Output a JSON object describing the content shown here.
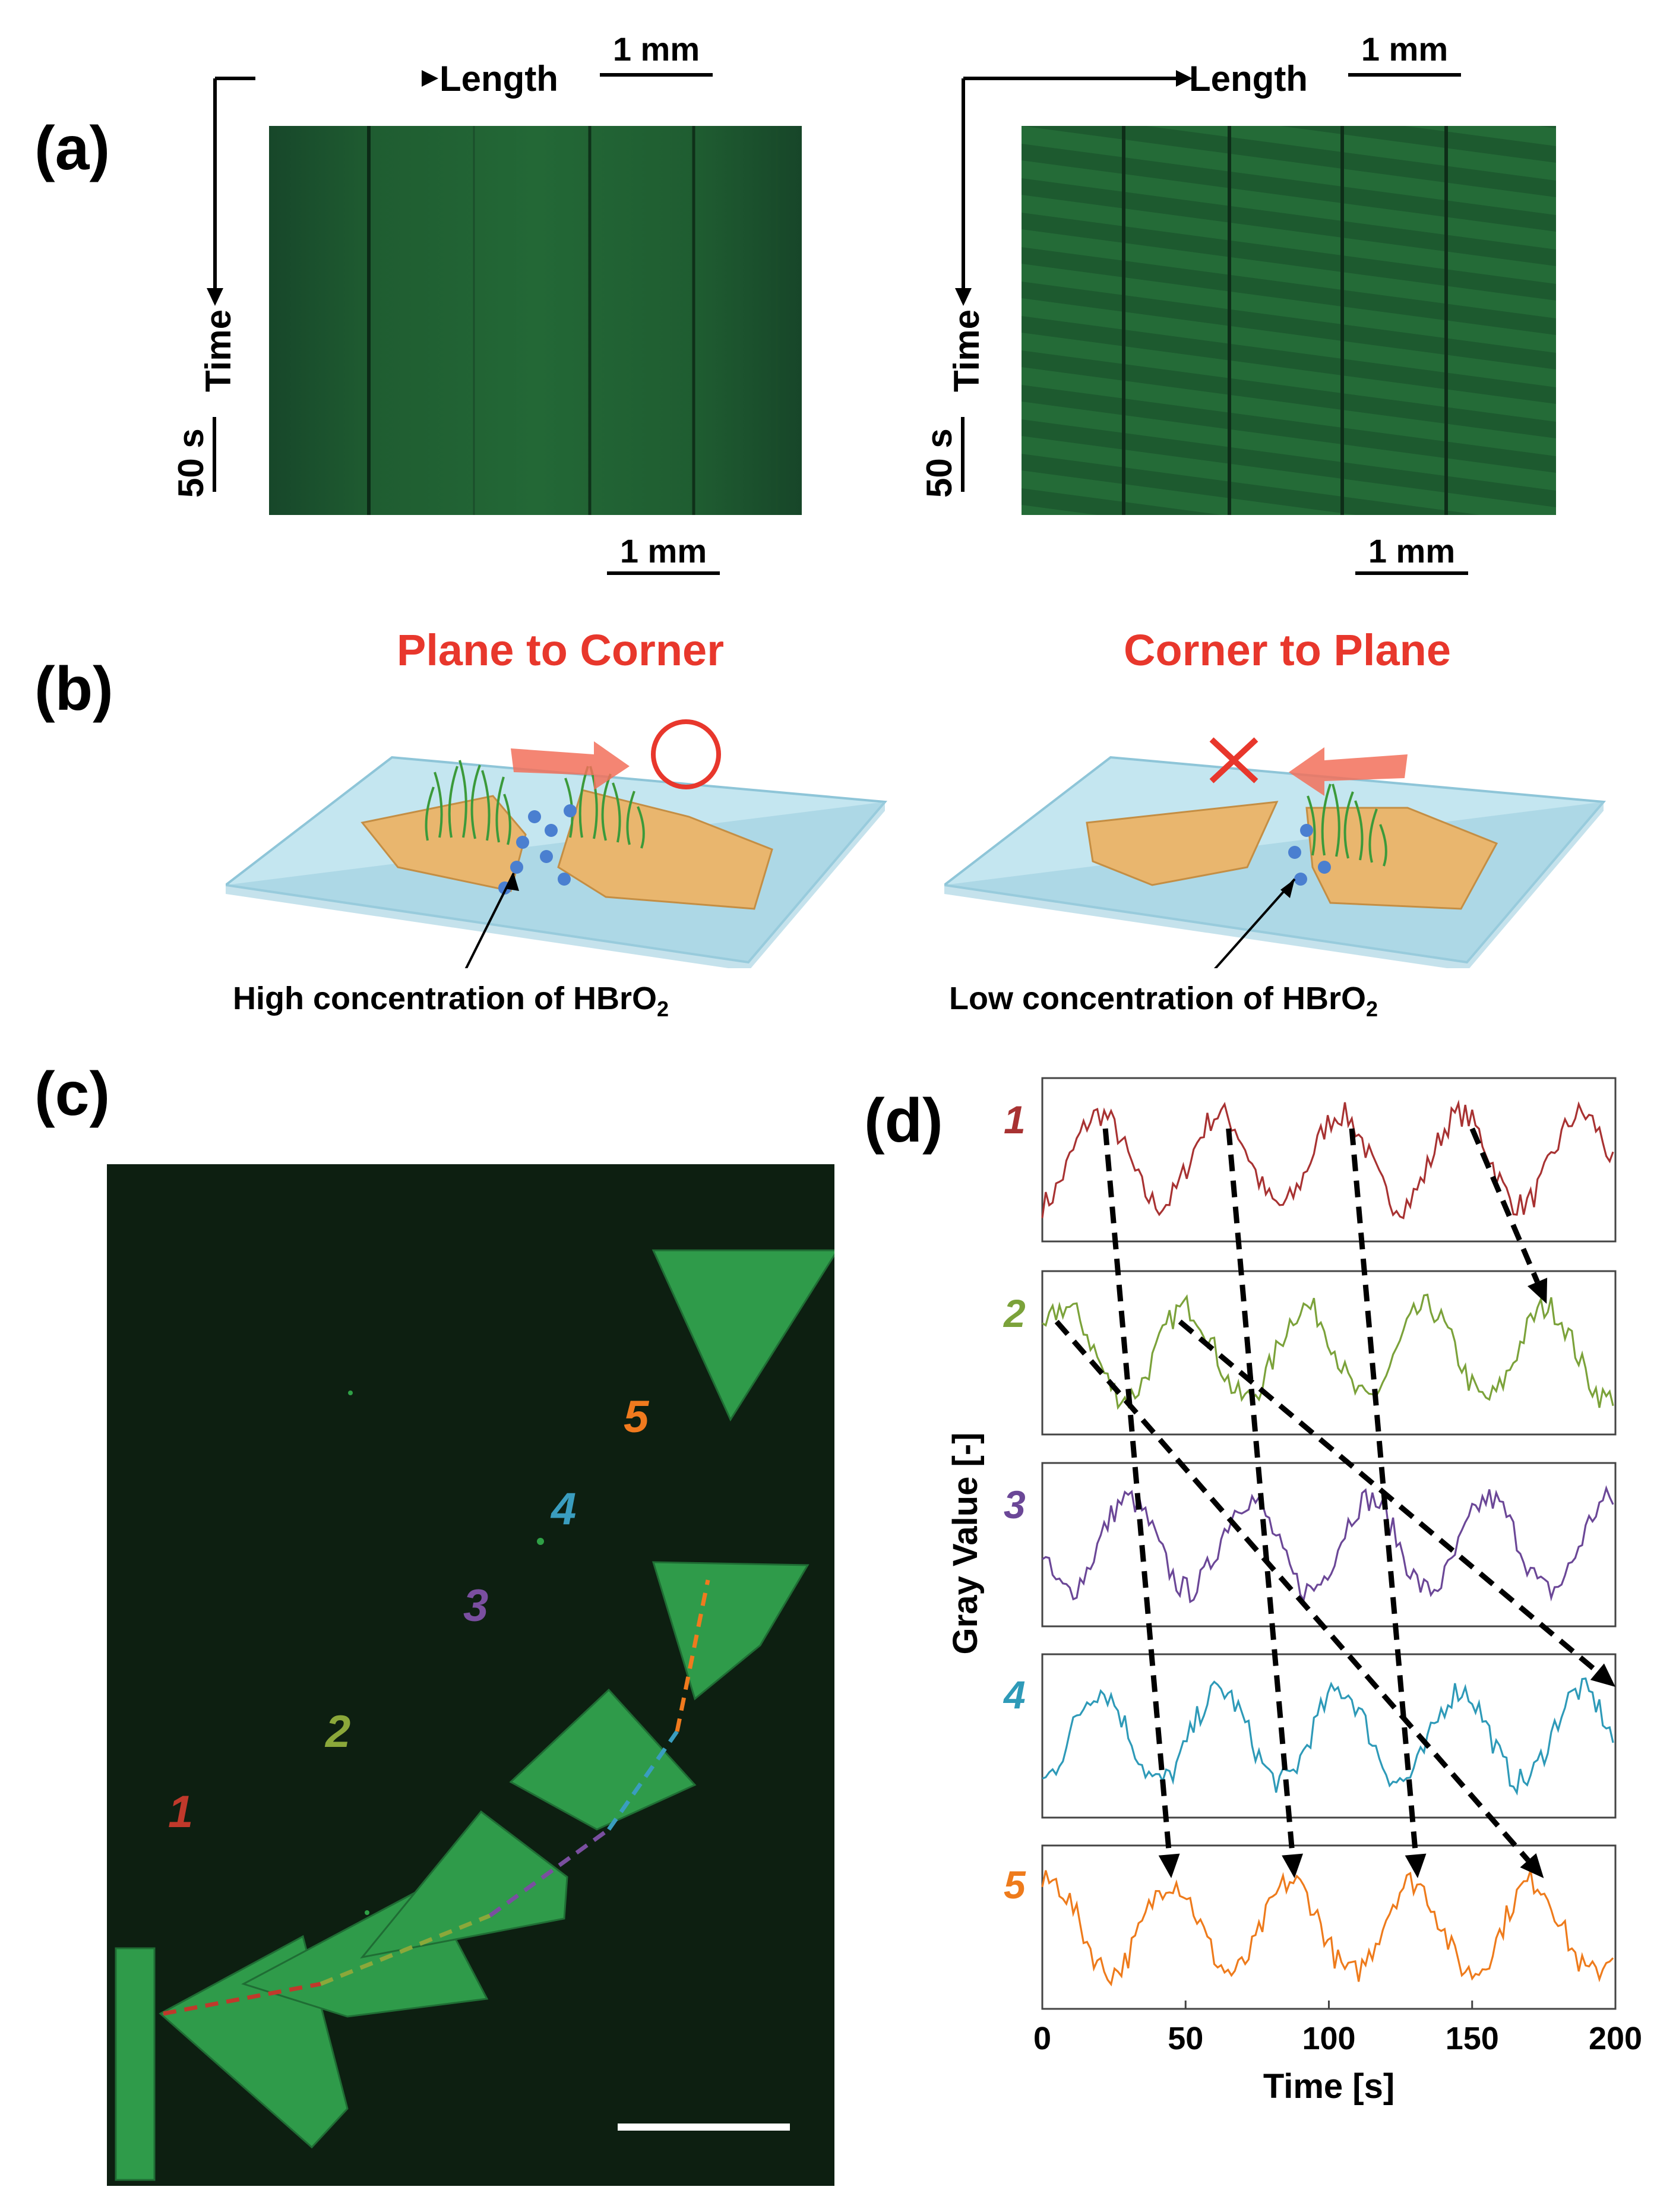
{
  "panel_a": {
    "label": "(a)",
    "length_label": "Length",
    "time_label": "Time",
    "scale_top": "1 mm",
    "scale_bottom": "1 mm",
    "scale_time": "50 s"
  },
  "panel_b": {
    "label": "(b)",
    "left_title": "Plane to Corner",
    "right_title": "Corner to Plane",
    "left_caption": "High concentration of HBrO",
    "left_caption_sub": "2",
    "right_caption": "Low concentration of HBrO",
    "right_caption_sub": "2",
    "colors": {
      "title": "#e8372c",
      "glass": "#bfe4ef",
      "gel": "#e9b66e",
      "fiber": "#3b9a3a"
    }
  },
  "panel_c": {
    "label": "(c)",
    "segment_labels": [
      "1",
      "2",
      "3",
      "4",
      "5"
    ],
    "segment_colors": [
      "#c0392b",
      "#8ba83a",
      "#7a4fa0",
      "#3a9dbf",
      "#f07a1e"
    ]
  },
  "panel_d": {
    "label": "(d)",
    "row_labels": [
      "1",
      "2",
      "3",
      "4",
      "5"
    ]
  },
  "chart_data": {
    "type": "line",
    "title": "",
    "xlabel": "Time [s]",
    "ylabel": "Gray Value [-]",
    "xlim": [
      0,
      200
    ],
    "xticks": [
      "0",
      "50",
      "100",
      "150",
      "200"
    ],
    "period_s": 42,
    "series": [
      {
        "name": "1",
        "color": "#a83232",
        "peaks_s": [
          20,
          62,
          104,
          146,
          188
        ]
      },
      {
        "name": "2",
        "color": "#7ba23a",
        "peaks_s": [
          8,
          50,
          92,
          134,
          176
        ]
      },
      {
        "name": "3",
        "color": "#6b4797",
        "peaks_s": [
          30,
          72,
          114,
          156,
          198
        ]
      },
      {
        "name": "4",
        "color": "#2e9ab8",
        "peaks_s": [
          20,
          62,
          104,
          146,
          188
        ]
      },
      {
        "name": "5",
        "color": "#ee7b1c",
        "peaks_s": [
          45,
          87,
          129,
          171
        ]
      }
    ],
    "propagation_arrows": [
      {
        "from_row": 1,
        "from_t": 22,
        "to_row": 5,
        "to_t": 45
      },
      {
        "from_row": 1,
        "from_t": 65,
        "to_row": 5,
        "to_t": 88
      },
      {
        "from_row": 1,
        "from_t": 108,
        "to_row": 5,
        "to_t": 131
      },
      {
        "from_row": 1,
        "from_t": 150,
        "to_row": 2,
        "to_t": 176
      },
      {
        "from_row": 2,
        "from_t": 5,
        "to_row": 5,
        "to_t": 175
      },
      {
        "from_row": 2,
        "from_t": 48,
        "to_row": 4,
        "to_t": 200
      }
    ]
  }
}
